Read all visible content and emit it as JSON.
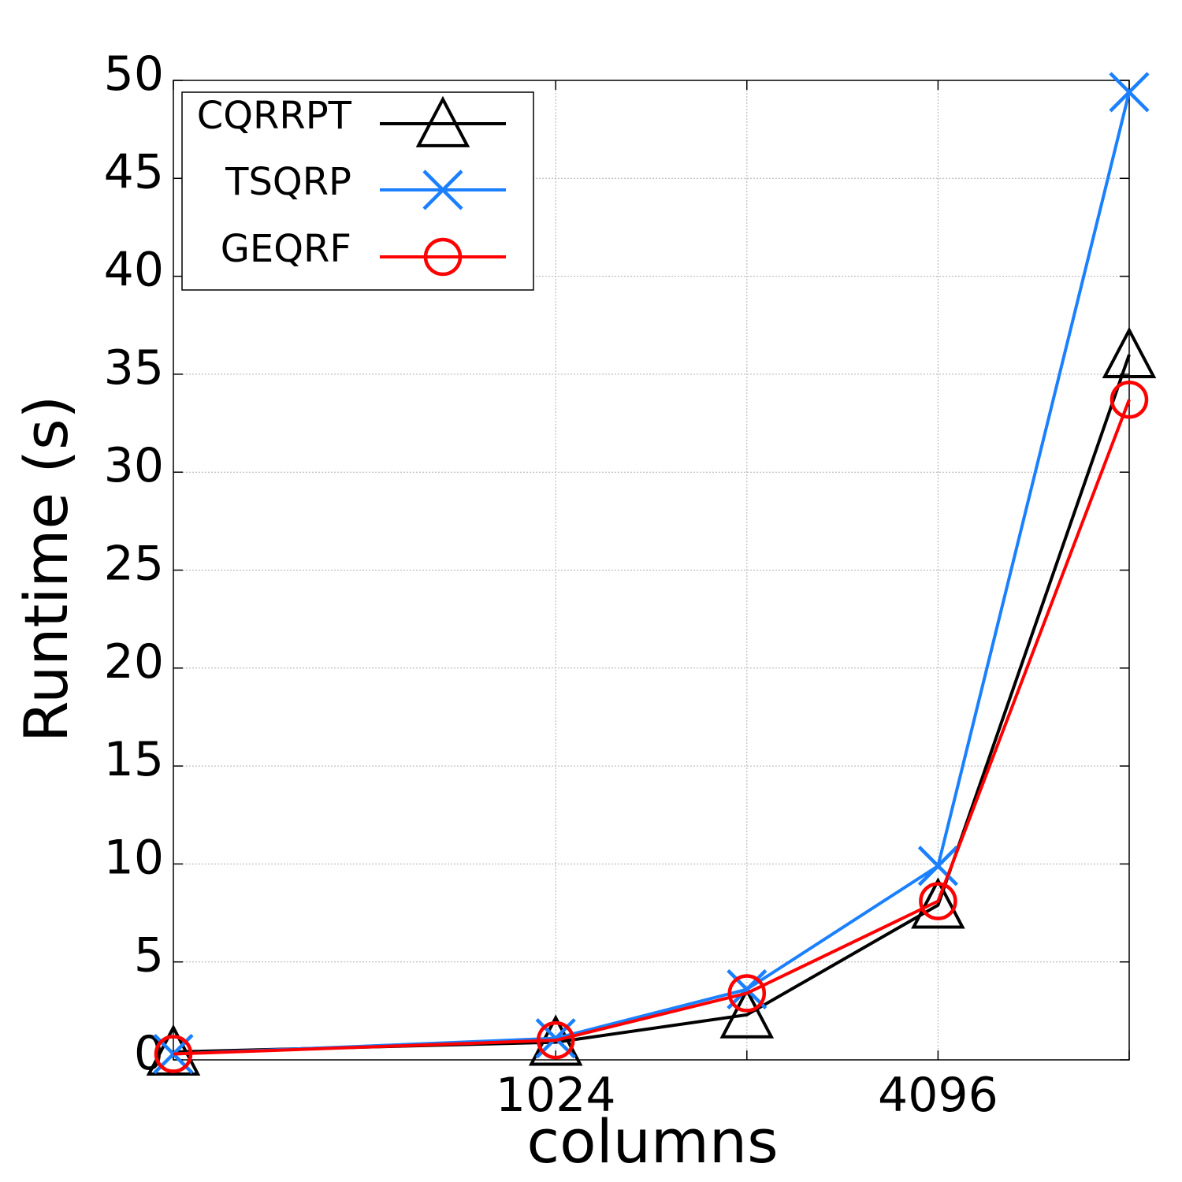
{
  "chart_data": {
    "type": "line",
    "title": "",
    "xlabel": "columns",
    "ylabel": "Runtime (s)",
    "x": [
      256,
      1024,
      2048,
      4096,
      8192
    ],
    "xticks": [
      {
        "value": 1024,
        "label": "1024"
      },
      {
        "value": 4096,
        "label": "4096"
      }
    ],
    "x_log2_scale": true,
    "ylim": [
      0,
      50
    ],
    "yticks": [
      0,
      5,
      10,
      15,
      20,
      25,
      30,
      35,
      40,
      45,
      50
    ],
    "grid": true,
    "legend_position": "top-left",
    "series": [
      {
        "name": "CQRRPT",
        "color": "#000000",
        "marker": "triangle",
        "values": [
          0.4,
          0.9,
          2.3,
          7.9,
          36.0
        ]
      },
      {
        "name": "TSQRP",
        "color": "#1a80ff",
        "marker": "x",
        "values": [
          0.3,
          1.1,
          3.6,
          9.9,
          49.4
        ]
      },
      {
        "name": "GEQRF",
        "color": "#ff0000",
        "marker": "circle",
        "values": [
          0.3,
          1.0,
          3.4,
          8.1,
          33.7
        ]
      }
    ]
  }
}
